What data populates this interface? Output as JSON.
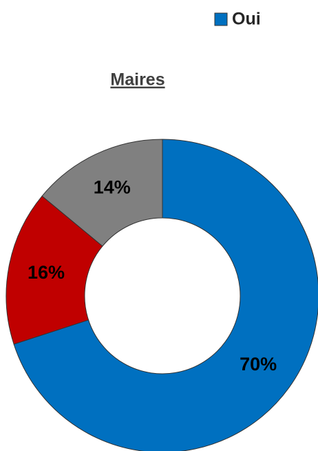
{
  "chart_data": {
    "type": "pie",
    "title": "Maires",
    "categories": [
      "Oui",
      null,
      null
    ],
    "values": [
      70,
      16,
      14
    ],
    "value_labels": [
      "70%",
      "16%",
      "14%"
    ],
    "colors": [
      "#0070c0",
      "#c00000",
      "#808080"
    ],
    "legend": "top-right"
  }
}
